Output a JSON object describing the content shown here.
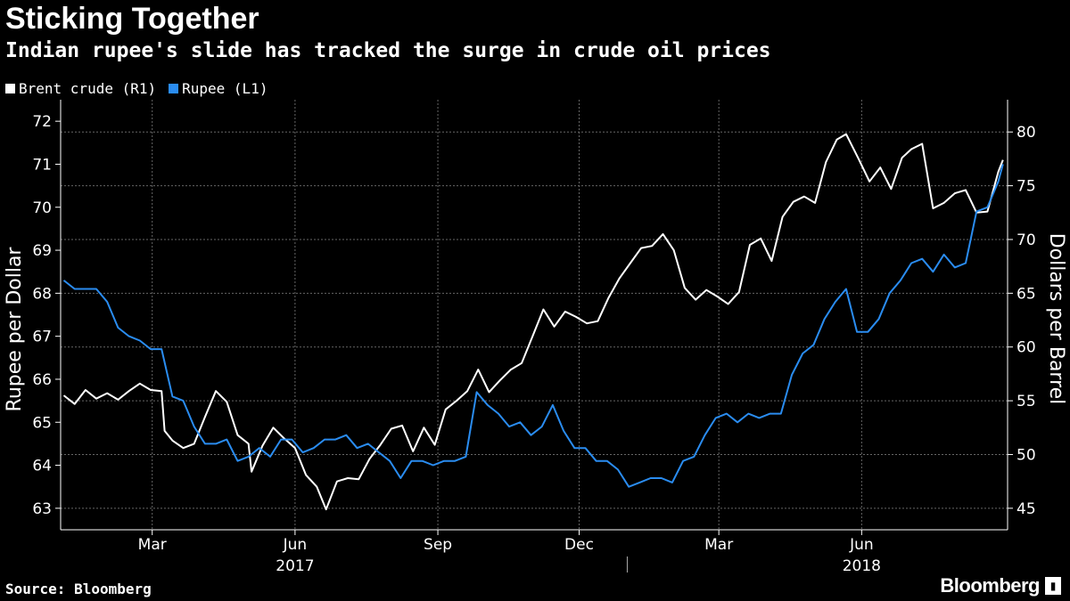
{
  "header": {
    "title": "Sticking Together",
    "subtitle": "Indian rupee's slide has tracked the surge in crude oil prices"
  },
  "footer": {
    "source": "Source: Bloomberg",
    "brand": "Bloomberg",
    "brand_icon": "bloomberg-logo-icon"
  },
  "colors": {
    "background": "#000000",
    "brent": "#ffffff",
    "rupee": "#2a8cf0",
    "grid": "#666666"
  },
  "chart_data": {
    "type": "line",
    "title": "Sticking Together",
    "subtitle": "Indian rupee's slide has tracked the surge in crude oil prices",
    "x_range": [
      "2017-01-01",
      "2018-09-03"
    ],
    "x_month_ticks": [
      "Mar",
      "Jun",
      "Sep",
      "Dec",
      "Mar",
      "Jun"
    ],
    "x_month_tick_dates": [
      "2017-03-01",
      "2017-06-01",
      "2017-09-01",
      "2017-12-01",
      "2018-03-01",
      "2018-06-01"
    ],
    "x_year_labels": [
      "2017",
      "2018"
    ],
    "x_year_label_dates": [
      "2017-06-01",
      "2018-06-01"
    ],
    "y_left": {
      "label": "Rupee per Dollar",
      "range": [
        62.5,
        72.5
      ],
      "ticks": [
        63,
        64,
        65,
        66,
        67,
        68,
        69,
        70,
        71,
        72
      ]
    },
    "y_right": {
      "label": "Dollars per Barrel",
      "range": [
        43,
        83
      ],
      "ticks": [
        45,
        50,
        55,
        60,
        65,
        70,
        75,
        80
      ]
    },
    "grid": true,
    "legend_position": "top-left",
    "series": [
      {
        "name": "Brent crude (R1)",
        "axis": "right",
        "color": "#ffffff",
        "points": [
          [
            "2017-01-03",
            55.5
          ],
          [
            "2017-01-10",
            54.7
          ],
          [
            "2017-01-17",
            56.0
          ],
          [
            "2017-01-24",
            55.2
          ],
          [
            "2017-01-31",
            55.7
          ],
          [
            "2017-02-07",
            55.1
          ],
          [
            "2017-02-14",
            55.9
          ],
          [
            "2017-02-21",
            56.6
          ],
          [
            "2017-02-28",
            56.0
          ],
          [
            "2017-03-07",
            55.9
          ],
          [
            "2017-03-09",
            52.2
          ],
          [
            "2017-03-14",
            51.3
          ],
          [
            "2017-03-21",
            50.6
          ],
          [
            "2017-03-28",
            51.0
          ],
          [
            "2017-04-04",
            53.5
          ],
          [
            "2017-04-11",
            55.9
          ],
          [
            "2017-04-18",
            54.9
          ],
          [
            "2017-04-25",
            51.8
          ],
          [
            "2017-05-02",
            51.0
          ],
          [
            "2017-05-04",
            48.4
          ],
          [
            "2017-05-11",
            50.8
          ],
          [
            "2017-05-18",
            52.5
          ],
          [
            "2017-05-25",
            51.5
          ],
          [
            "2017-06-01",
            50.6
          ],
          [
            "2017-06-08",
            48.1
          ],
          [
            "2017-06-15",
            47.0
          ],
          [
            "2017-06-21",
            44.9
          ],
          [
            "2017-06-28",
            47.5
          ],
          [
            "2017-07-05",
            47.8
          ],
          [
            "2017-07-12",
            47.7
          ],
          [
            "2017-07-19",
            49.6
          ],
          [
            "2017-07-26",
            50.9
          ],
          [
            "2017-08-02",
            52.4
          ],
          [
            "2017-08-09",
            52.7
          ],
          [
            "2017-08-16",
            50.3
          ],
          [
            "2017-08-23",
            52.5
          ],
          [
            "2017-08-30",
            50.9
          ],
          [
            "2017-09-06",
            54.2
          ],
          [
            "2017-09-13",
            55.0
          ],
          [
            "2017-09-20",
            55.9
          ],
          [
            "2017-09-27",
            57.9
          ],
          [
            "2017-10-04",
            55.8
          ],
          [
            "2017-10-11",
            56.9
          ],
          [
            "2017-10-18",
            57.9
          ],
          [
            "2017-10-25",
            58.5
          ],
          [
            "2017-11-01",
            61.0
          ],
          [
            "2017-11-08",
            63.5
          ],
          [
            "2017-11-15",
            61.9
          ],
          [
            "2017-11-22",
            63.3
          ],
          [
            "2017-11-29",
            62.8
          ],
          [
            "2017-12-06",
            62.2
          ],
          [
            "2017-12-13",
            62.4
          ],
          [
            "2017-12-20",
            64.6
          ],
          [
            "2017-12-27",
            66.4
          ],
          [
            "2018-01-03",
            67.8
          ],
          [
            "2018-01-10",
            69.2
          ],
          [
            "2018-01-17",
            69.4
          ],
          [
            "2018-01-24",
            70.5
          ],
          [
            "2018-01-31",
            69.0
          ],
          [
            "2018-02-07",
            65.5
          ],
          [
            "2018-02-14",
            64.4
          ],
          [
            "2018-02-21",
            65.3
          ],
          [
            "2018-02-28",
            64.7
          ],
          [
            "2018-03-07",
            64.0
          ],
          [
            "2018-03-14",
            65.1
          ],
          [
            "2018-03-21",
            69.5
          ],
          [
            "2018-03-28",
            70.1
          ],
          [
            "2018-04-04",
            68.0
          ],
          [
            "2018-04-11",
            72.1
          ],
          [
            "2018-04-18",
            73.5
          ],
          [
            "2018-04-25",
            74.0
          ],
          [
            "2018-05-02",
            73.4
          ],
          [
            "2018-05-09",
            77.2
          ],
          [
            "2018-05-16",
            79.3
          ],
          [
            "2018-05-22",
            79.8
          ],
          [
            "2018-05-30",
            77.5
          ],
          [
            "2018-06-06",
            75.4
          ],
          [
            "2018-06-13",
            76.7
          ],
          [
            "2018-06-20",
            74.7
          ],
          [
            "2018-06-27",
            77.6
          ],
          [
            "2018-07-03",
            78.4
          ],
          [
            "2018-07-10",
            78.9
          ],
          [
            "2018-07-17",
            72.9
          ],
          [
            "2018-07-24",
            73.4
          ],
          [
            "2018-07-31",
            74.3
          ],
          [
            "2018-08-07",
            74.6
          ],
          [
            "2018-08-14",
            72.5
          ],
          [
            "2018-08-21",
            72.6
          ],
          [
            "2018-08-28",
            76.3
          ],
          [
            "2018-08-31",
            77.4
          ]
        ]
      },
      {
        "name": "Rupee (L1)",
        "axis": "left",
        "color": "#2a8cf0",
        "points": [
          [
            "2017-01-03",
            68.3
          ],
          [
            "2017-01-10",
            68.1
          ],
          [
            "2017-01-17",
            68.1
          ],
          [
            "2017-01-24",
            68.1
          ],
          [
            "2017-01-31",
            67.8
          ],
          [
            "2017-02-07",
            67.2
          ],
          [
            "2017-02-14",
            67.0
          ],
          [
            "2017-02-21",
            66.9
          ],
          [
            "2017-02-28",
            66.7
          ],
          [
            "2017-03-07",
            66.7
          ],
          [
            "2017-03-14",
            65.6
          ],
          [
            "2017-03-21",
            65.5
          ],
          [
            "2017-03-28",
            64.9
          ],
          [
            "2017-04-04",
            64.5
          ],
          [
            "2017-04-11",
            64.5
          ],
          [
            "2017-04-18",
            64.6
          ],
          [
            "2017-04-25",
            64.1
          ],
          [
            "2017-05-02",
            64.2
          ],
          [
            "2017-05-09",
            64.4
          ],
          [
            "2017-05-16",
            64.2
          ],
          [
            "2017-05-23",
            64.6
          ],
          [
            "2017-05-30",
            64.6
          ],
          [
            "2017-06-06",
            64.3
          ],
          [
            "2017-06-13",
            64.4
          ],
          [
            "2017-06-20",
            64.6
          ],
          [
            "2017-06-27",
            64.6
          ],
          [
            "2017-07-04",
            64.7
          ],
          [
            "2017-07-11",
            64.4
          ],
          [
            "2017-07-18",
            64.5
          ],
          [
            "2017-07-25",
            64.3
          ],
          [
            "2017-08-01",
            64.1
          ],
          [
            "2017-08-08",
            63.7
          ],
          [
            "2017-08-15",
            64.1
          ],
          [
            "2017-08-22",
            64.1
          ],
          [
            "2017-08-29",
            64.0
          ],
          [
            "2017-09-05",
            64.1
          ],
          [
            "2017-09-12",
            64.1
          ],
          [
            "2017-09-19",
            64.2
          ],
          [
            "2017-09-26",
            65.7
          ],
          [
            "2017-10-03",
            65.4
          ],
          [
            "2017-10-10",
            65.2
          ],
          [
            "2017-10-17",
            64.9
          ],
          [
            "2017-10-24",
            65.0
          ],
          [
            "2017-10-31",
            64.7
          ],
          [
            "2017-11-07",
            64.9
          ],
          [
            "2017-11-14",
            65.4
          ],
          [
            "2017-11-21",
            64.8
          ],
          [
            "2017-11-28",
            64.4
          ],
          [
            "2017-12-05",
            64.4
          ],
          [
            "2017-12-12",
            64.1
          ],
          [
            "2017-12-19",
            64.1
          ],
          [
            "2017-12-26",
            63.9
          ],
          [
            "2018-01-02",
            63.5
          ],
          [
            "2018-01-09",
            63.6
          ],
          [
            "2018-01-16",
            63.7
          ],
          [
            "2018-01-23",
            63.7
          ],
          [
            "2018-01-30",
            63.6
          ],
          [
            "2018-02-06",
            64.1
          ],
          [
            "2018-02-13",
            64.2
          ],
          [
            "2018-02-20",
            64.7
          ],
          [
            "2018-02-27",
            65.1
          ],
          [
            "2018-03-06",
            65.2
          ],
          [
            "2018-03-13",
            65.0
          ],
          [
            "2018-03-20",
            65.2
          ],
          [
            "2018-03-27",
            65.1
          ],
          [
            "2018-04-03",
            65.2
          ],
          [
            "2018-04-10",
            65.2
          ],
          [
            "2018-04-17",
            66.1
          ],
          [
            "2018-04-24",
            66.6
          ],
          [
            "2018-05-01",
            66.8
          ],
          [
            "2018-05-08",
            67.4
          ],
          [
            "2018-05-15",
            67.8
          ],
          [
            "2018-05-22",
            68.1
          ],
          [
            "2018-05-29",
            67.1
          ],
          [
            "2018-06-05",
            67.1
          ],
          [
            "2018-06-12",
            67.4
          ],
          [
            "2018-06-19",
            68.0
          ],
          [
            "2018-06-26",
            68.3
          ],
          [
            "2018-07-03",
            68.7
          ],
          [
            "2018-07-10",
            68.8
          ],
          [
            "2018-07-17",
            68.5
          ],
          [
            "2018-07-24",
            68.9
          ],
          [
            "2018-07-31",
            68.6
          ],
          [
            "2018-08-07",
            68.7
          ],
          [
            "2018-08-14",
            69.9
          ],
          [
            "2018-08-21",
            70.0
          ],
          [
            "2018-08-28",
            70.6
          ],
          [
            "2018-08-31",
            71.0
          ]
        ]
      }
    ]
  }
}
